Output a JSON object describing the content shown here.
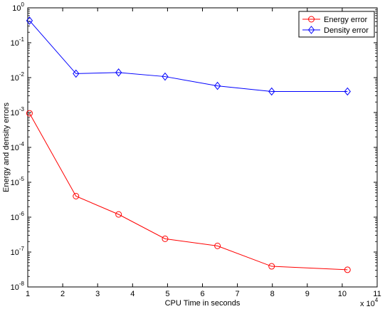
{
  "chart_data": {
    "type": "line",
    "xlabel": "CPU Time in seconds",
    "ylabel": "Energy and density errors",
    "x_multiplier": {
      "base": "x 10",
      "exponent": "4"
    },
    "xlim": [
      1,
      11
    ],
    "ylim": [
      1e-08,
      1
    ],
    "yscale": "log",
    "grid": false,
    "legend_position": "top-right",
    "xticks": [
      1,
      2,
      3,
      4,
      5,
      6,
      7,
      8,
      9,
      10,
      11
    ],
    "xtick_labels": [
      "1",
      "2",
      "3",
      "4",
      "5",
      "6",
      "7",
      "8",
      "9",
      "10",
      "11"
    ],
    "yticks": [
      {
        "value": 1e-08,
        "base": "10",
        "exp": "-8"
      },
      {
        "value": 1e-07,
        "base": "10",
        "exp": "-7"
      },
      {
        "value": 1e-06,
        "base": "10",
        "exp": "-6"
      },
      {
        "value": 1e-05,
        "base": "10",
        "exp": "-5"
      },
      {
        "value": 0.0001,
        "base": "10",
        "exp": "-4"
      },
      {
        "value": 0.001,
        "base": "10",
        "exp": "-3"
      },
      {
        "value": 0.01,
        "base": "10",
        "exp": "-2"
      },
      {
        "value": 0.1,
        "base": "10",
        "exp": "-1"
      },
      {
        "value": 1,
        "base": "10",
        "exp": "0"
      }
    ],
    "series": [
      {
        "name": "Energy error",
        "color": "#ff0000",
        "marker": "circle",
        "x": [
          1.05,
          2.38,
          3.6,
          4.93,
          6.43,
          7.98,
          10.15
        ],
        "y": [
          0.00095,
          4e-06,
          1.2e-06,
          2.4e-07,
          1.5e-07,
          3.9e-08,
          3.1e-08
        ]
      },
      {
        "name": "Density error",
        "color": "#0000ff",
        "marker": "diamond",
        "x": [
          1.05,
          2.38,
          3.6,
          4.93,
          6.43,
          7.98,
          10.15
        ],
        "y": [
          0.43,
          0.013,
          0.014,
          0.0107,
          0.0058,
          0.004,
          0.004
        ]
      }
    ]
  }
}
